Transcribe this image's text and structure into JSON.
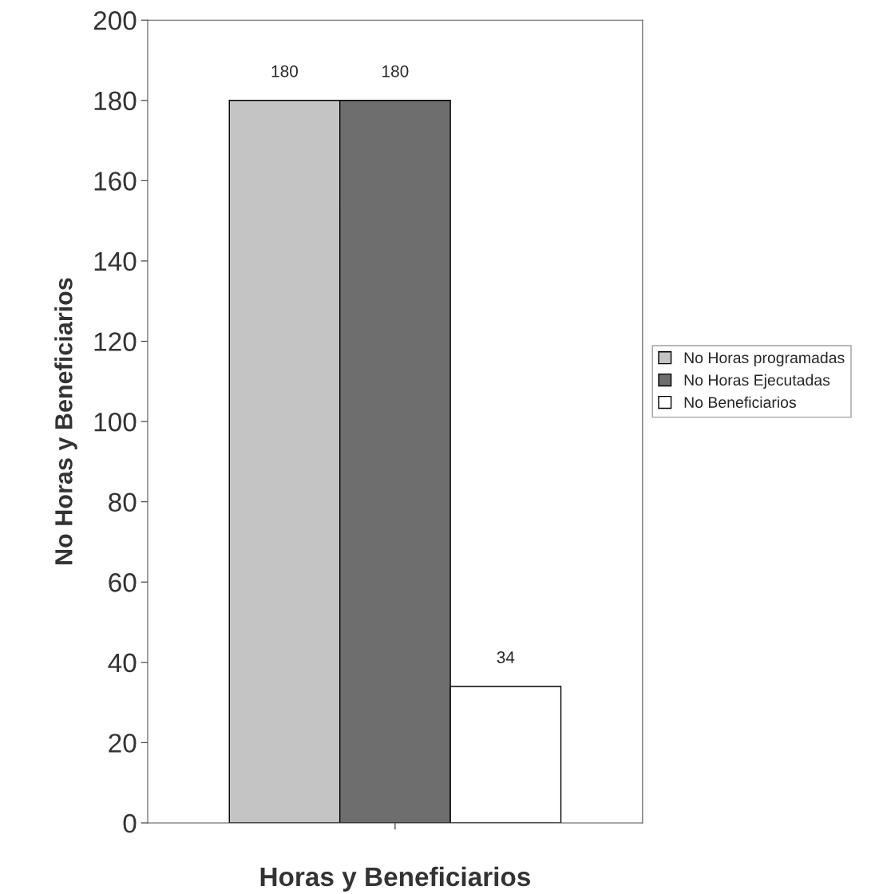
{
  "chart_data": {
    "type": "bar",
    "xlabel": "Horas y Beneficiarios",
    "ylabel": "No Horas y Beneficiarios",
    "categories": [
      null
    ],
    "series": [
      {
        "name": "No Horas programadas",
        "color": "#c4c4c4",
        "values": [
          180
        ]
      },
      {
        "name": "No Horas Ejecutadas",
        "color": "#6e6e6e",
        "values": [
          180
        ]
      },
      {
        "name": "No Beneficiarios",
        "color": "#ffffff",
        "values": [
          34
        ]
      }
    ],
    "ylim": [
      0,
      200
    ],
    "yticks": [
      0,
      20,
      40,
      60,
      80,
      100,
      120,
      140,
      160,
      180,
      200
    ],
    "data_labels": true,
    "legend": "right",
    "grid": false
  }
}
